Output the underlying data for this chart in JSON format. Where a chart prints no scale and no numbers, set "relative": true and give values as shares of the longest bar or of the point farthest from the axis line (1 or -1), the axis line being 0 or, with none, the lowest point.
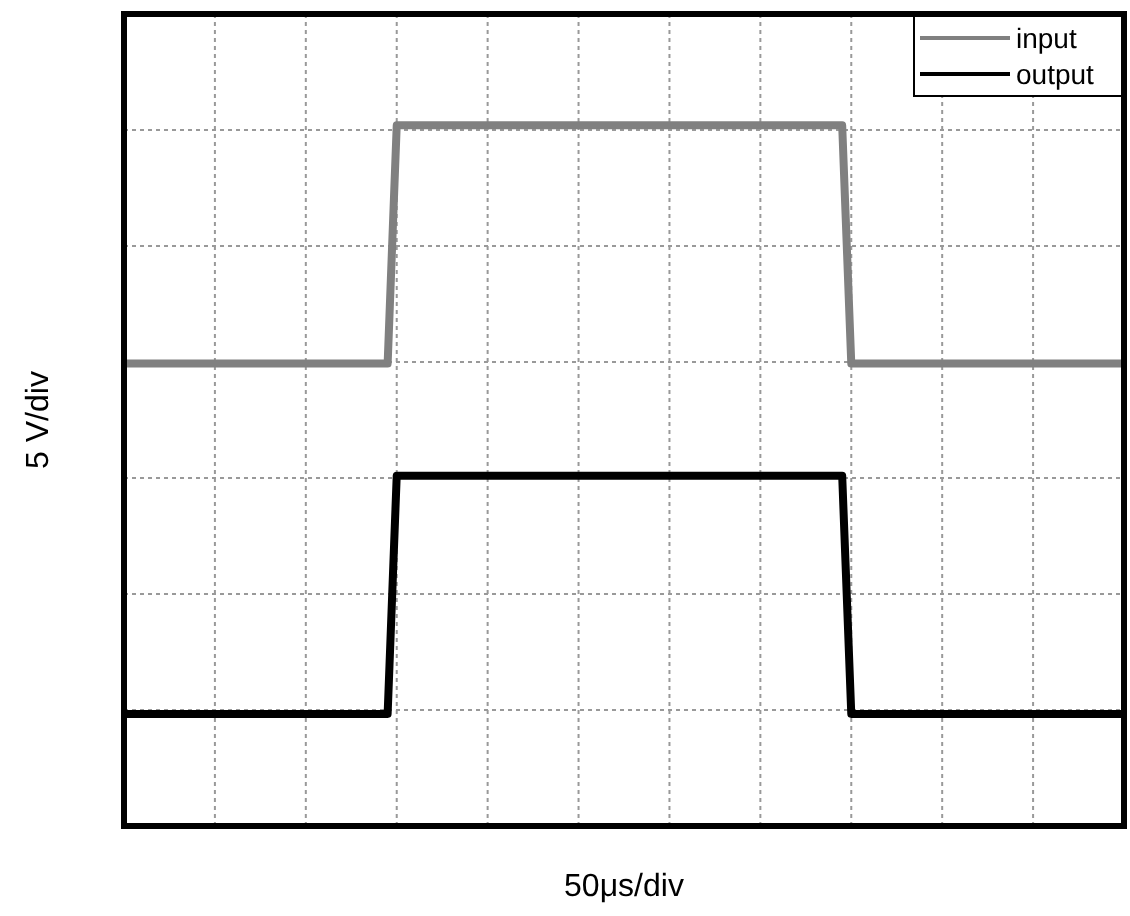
{
  "chart_data": {
    "type": "line",
    "relative": true,
    "xlabel": "50μs/div",
    "ylabel": "5 V/div",
    "grid": true,
    "legend": "top right",
    "marker": "none",
    "line_style": "solid",
    "categories": [
      null,
      null,
      null,
      null,
      null,
      null,
      null,
      null,
      null,
      null,
      null,
      null,
      null,
      null,
      null,
      null,
      null,
      null,
      null,
      null,
      null,
      null,
      null,
      null,
      null,
      null,
      null,
      null,
      null,
      null,
      null,
      null,
      null,
      null,
      null,
      null,
      null,
      null,
      null,
      null,
      null,
      null,
      null,
      null,
      null,
      null,
      null,
      null,
      null,
      null,
      null,
      null,
      null,
      null,
      null,
      null,
      null,
      null,
      null,
      null,
      null,
      null,
      null,
      null,
      null,
      null,
      null,
      null,
      null,
      null,
      null,
      null,
      null,
      null,
      null,
      null,
      null,
      null,
      null,
      null,
      null,
      null,
      null,
      null,
      null,
      null,
      null,
      null,
      null,
      null,
      null,
      null,
      null,
      null,
      null,
      null,
      null,
      null,
      null,
      null,
      null,
      null,
      null,
      null,
      null,
      null,
      null,
      null,
      null,
      null,
      null
    ],
    "series": [
      {
        "name": "input",
        "color": "#808080",
        "values": [
          0.66,
          0.66,
          0.66,
          0.66,
          0.66,
          0.66,
          0.66,
          0.66,
          0.66,
          0.66,
          0.66,
          0.66,
          0.66,
          0.66,
          0.66,
          0.66,
          0.66,
          0.66,
          0.66,
          0.66,
          0.66,
          0.66,
          0.66,
          0.66,
          0.66,
          0.66,
          0.66,
          0.66,
          0.66,
          0.66,
          1,
          1,
          1,
          1,
          1,
          1,
          1,
          1,
          1,
          1,
          1,
          1,
          1,
          1,
          1,
          1,
          1,
          1,
          1,
          1,
          1,
          1,
          1,
          1,
          1,
          1,
          1,
          1,
          1,
          1,
          1,
          1,
          1,
          1,
          1,
          1,
          1,
          1,
          1,
          1,
          1,
          1,
          1,
          1,
          1,
          1,
          1,
          1,
          1,
          1,
          0.66,
          0.66,
          0.66,
          0.66,
          0.66,
          0.66,
          0.66,
          0.66,
          0.66,
          0.66,
          0.66,
          0.66,
          0.66,
          0.66,
          0.66,
          0.66,
          0.66,
          0.66,
          0.66,
          0.66,
          0.66,
          0.66,
          0.66,
          0.66,
          0.66,
          0.66,
          0.66,
          0.66,
          0.66,
          0.66,
          0.66
        ]
      },
      {
        "name": "output",
        "color": "#000000",
        "values": [
          0.16,
          0.16,
          0.16,
          0.16,
          0.16,
          0.16,
          0.16,
          0.16,
          0.16,
          0.16,
          0.16,
          0.16,
          0.16,
          0.16,
          0.16,
          0.16,
          0.16,
          0.16,
          0.16,
          0.16,
          0.16,
          0.16,
          0.16,
          0.16,
          0.16,
          0.16,
          0.16,
          0.16,
          0.16,
          0.16,
          0.5,
          0.5,
          0.5,
          0.5,
          0.5,
          0.5,
          0.5,
          0.5,
          0.5,
          0.5,
          0.5,
          0.5,
          0.5,
          0.5,
          0.5,
          0.5,
          0.5,
          0.5,
          0.5,
          0.5,
          0.5,
          0.5,
          0.5,
          0.5,
          0.5,
          0.5,
          0.5,
          0.5,
          0.5,
          0.5,
          0.5,
          0.5,
          0.5,
          0.5,
          0.5,
          0.5,
          0.5,
          0.5,
          0.5,
          0.5,
          0.5,
          0.5,
          0.5,
          0.5,
          0.5,
          0.5,
          0.5,
          0.5,
          0.5,
          0.5,
          0.16,
          0.16,
          0.16,
          0.16,
          0.16,
          0.16,
          0.16,
          0.16,
          0.16,
          0.16,
          0.16,
          0.16,
          0.16,
          0.16,
          0.16,
          0.16,
          0.16,
          0.16,
          0.16,
          0.16,
          0.16,
          0.16,
          0.16,
          0.16,
          0.16,
          0.16,
          0.16,
          0.16,
          0.16,
          0.16,
          0.16
        ]
      }
    ]
  }
}
